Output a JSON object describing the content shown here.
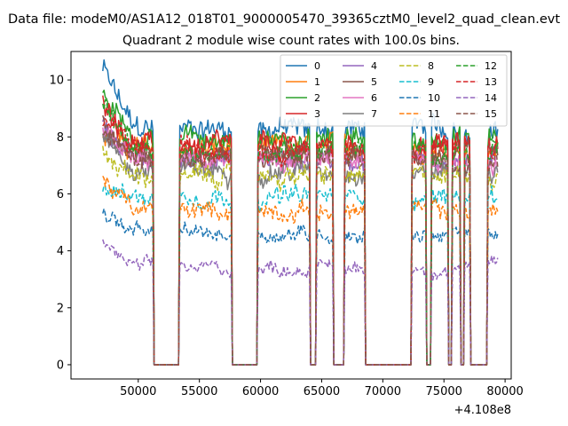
{
  "chart_data": {
    "type": "line",
    "suptitle": "Data file: modeM0/AS1A12_018T01_9000005470_39365cztM0_level2_quad_clean.evt",
    "title": "Quadrant 2 module wise count rates with 100.0s bins.",
    "xlabel": "",
    "ylabel": "",
    "x_offset_label": "+4.108e8",
    "xlim": [
      44500,
      80500
    ],
    "ylim": [
      -0.5,
      11.0
    ],
    "x_ticks": [
      50000,
      55000,
      60000,
      65000,
      70000,
      75000,
      80000
    ],
    "x_tick_labels": [
      "50000",
      "55000",
      "60000",
      "65000",
      "70000",
      "75000",
      "80000"
    ],
    "y_ticks": [
      0,
      2,
      4,
      6,
      8,
      10
    ],
    "y_tick_labels": [
      "0",
      "2",
      "4",
      "6",
      "8",
      "10"
    ],
    "grid": false,
    "legend_position": "top-right",
    "x_range": [
      47100,
      79400
    ],
    "bin_seconds": 100,
    "gaps": [
      [
        51300,
        53300
      ],
      [
        57700,
        59700
      ],
      [
        64100,
        64500
      ],
      [
        66000,
        66800
      ],
      [
        68600,
        72300
      ],
      [
        73600,
        73900
      ],
      [
        75400,
        75600
      ],
      [
        76400,
        76600
      ],
      [
        77200,
        78500
      ]
    ],
    "series": [
      {
        "name": "0",
        "level": 8.3,
        "start_peak": 10.4,
        "color": "#1f77b4",
        "dash": "solid"
      },
      {
        "name": "1",
        "level": 7.6,
        "start_peak": 8.0,
        "color": "#ff7f0e",
        "dash": "solid"
      },
      {
        "name": "2",
        "level": 7.9,
        "start_peak": 9.5,
        "color": "#2ca02c",
        "dash": "solid"
      },
      {
        "name": "3",
        "level": 7.7,
        "start_peak": 9.4,
        "color": "#d62728",
        "dash": "solid"
      },
      {
        "name": "4",
        "level": 7.2,
        "start_peak": 8.5,
        "color": "#9467bd",
        "dash": "solid"
      },
      {
        "name": "5",
        "level": 7.3,
        "start_peak": 8.6,
        "color": "#8c564b",
        "dash": "solid"
      },
      {
        "name": "6",
        "level": 7.1,
        "start_peak": 8.3,
        "color": "#e377c2",
        "dash": "solid"
      },
      {
        "name": "7",
        "level": 6.8,
        "start_peak": 7.9,
        "color": "#7f7f7f",
        "dash": "solid"
      },
      {
        "name": "8",
        "level": 6.6,
        "start_peak": 7.4,
        "color": "#bcbd22",
        "dash": "dashed"
      },
      {
        "name": "9",
        "level": 5.9,
        "start_peak": 6.3,
        "color": "#17becf",
        "dash": "dashed"
      },
      {
        "name": "10",
        "level": 4.6,
        "start_peak": 5.4,
        "color": "#1f77b4",
        "dash": "dashed"
      },
      {
        "name": "11",
        "level": 5.4,
        "start_peak": 6.5,
        "color": "#ff7f0e",
        "dash": "dashed"
      },
      {
        "name": "12",
        "level": 7.5,
        "start_peak": 9.3,
        "color": "#2ca02c",
        "dash": "dashed"
      },
      {
        "name": "13",
        "level": 7.6,
        "start_peak": 8.6,
        "color": "#d62728",
        "dash": "dashed"
      },
      {
        "name": "14",
        "level": 3.4,
        "start_peak": 4.3,
        "color": "#9467bd",
        "dash": "dashed"
      },
      {
        "name": "15",
        "level": 7.3,
        "start_peak": 8.2,
        "color": "#8c564b",
        "dash": "dashed"
      }
    ]
  }
}
